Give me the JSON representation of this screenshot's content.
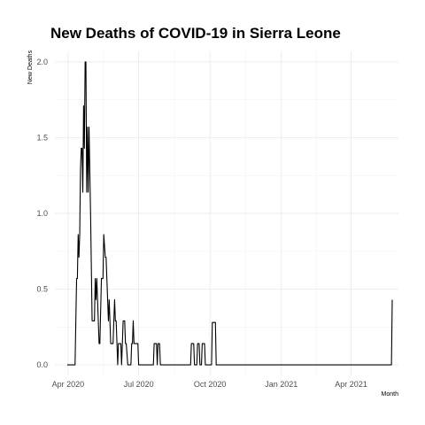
{
  "chart_data": {
    "type": "line",
    "title": "New Deaths of COVID-19 in Sierra Leone",
    "xlabel": "Month",
    "ylabel": "New Deaths",
    "xlim": [
      "2020-03-15",
      "2021-06-01"
    ],
    "ylim": [
      -0.07,
      2.07
    ],
    "x_ticks": [
      {
        "date": "2020-04-01",
        "label": "Apr 2020"
      },
      {
        "date": "2020-07-01",
        "label": "Jul 2020"
      },
      {
        "date": "2020-10-01",
        "label": "Oct 2020"
      },
      {
        "date": "2021-01-01",
        "label": "Jan 2021"
      },
      {
        "date": "2021-04-01",
        "label": "Apr 2021"
      }
    ],
    "y_ticks": [
      {
        "value": 0.0,
        "label": "0.0"
      },
      {
        "value": 0.5,
        "label": "0.5"
      },
      {
        "value": 1.0,
        "label": "1.0"
      },
      {
        "value": 1.5,
        "label": "1.5"
      },
      {
        "value": 2.0,
        "label": "2.0"
      }
    ],
    "grid": true,
    "series": [
      {
        "color": "#000000",
        "points": [
          [
            "2020-03-31",
            0
          ],
          [
            "2020-04-10",
            0
          ],
          [
            "2020-04-11",
            0.29
          ],
          [
            "2020-04-12",
            0.57
          ],
          [
            "2020-04-13",
            0.57
          ],
          [
            "2020-04-14",
            0.86
          ],
          [
            "2020-04-15",
            0.71
          ],
          [
            "2020-04-16",
            0.86
          ],
          [
            "2020-04-17",
            1.29
          ],
          [
            "2020-04-18",
            1.43
          ],
          [
            "2020-04-19",
            1.43
          ],
          [
            "2020-04-20",
            1.14
          ],
          [
            "2020-04-21",
            1.71
          ],
          [
            "2020-04-22",
            1.43
          ],
          [
            "2020-04-23",
            2.0
          ],
          [
            "2020-04-24",
            2.0
          ],
          [
            "2020-04-25",
            1.14
          ],
          [
            "2020-04-26",
            1.57
          ],
          [
            "2020-04-27",
            1.14
          ],
          [
            "2020-04-28",
            1.57
          ],
          [
            "2020-04-30",
            1.0
          ],
          [
            "2020-05-02",
            0.29
          ],
          [
            "2020-05-05",
            0.29
          ],
          [
            "2020-05-06",
            0.57
          ],
          [
            "2020-05-07",
            0.43
          ],
          [
            "2020-05-08",
            0.57
          ],
          [
            "2020-05-09",
            0.43
          ],
          [
            "2020-05-11",
            0.14
          ],
          [
            "2020-05-12",
            0.14
          ],
          [
            "2020-05-14",
            0.57
          ],
          [
            "2020-05-16",
            0.57
          ],
          [
            "2020-05-17",
            0.86
          ],
          [
            "2020-05-19",
            0.71
          ],
          [
            "2020-05-20",
            0.71
          ],
          [
            "2020-05-22",
            0.43
          ],
          [
            "2020-05-23",
            0.29
          ],
          [
            "2020-05-24",
            0.43
          ],
          [
            "2020-05-26",
            0.14
          ],
          [
            "2020-05-29",
            0.14
          ],
          [
            "2020-05-30",
            0.29
          ],
          [
            "2020-05-31",
            0.43
          ],
          [
            "2020-06-01",
            0.29
          ],
          [
            "2020-06-02",
            0.29
          ],
          [
            "2020-06-04",
            0.0
          ],
          [
            "2020-06-05",
            0.14
          ],
          [
            "2020-06-08",
            0.14
          ],
          [
            "2020-06-09",
            0.0
          ],
          [
            "2020-06-10",
            0.14
          ],
          [
            "2020-06-11",
            0.29
          ],
          [
            "2020-06-13",
            0.29
          ],
          [
            "2020-06-14",
            0.14
          ],
          [
            "2020-06-15",
            0.14
          ],
          [
            "2020-06-17",
            0.0
          ],
          [
            "2020-06-21",
            0.0
          ],
          [
            "2020-06-22",
            0.14
          ],
          [
            "2020-06-23",
            0.14
          ],
          [
            "2020-06-24",
            0.29
          ],
          [
            "2020-06-25",
            0.14
          ],
          [
            "2020-06-30",
            0.14
          ],
          [
            "2020-07-01",
            0.0
          ],
          [
            "2020-07-20",
            0.0
          ],
          [
            "2020-07-21",
            0.14
          ],
          [
            "2020-07-24",
            0.14
          ],
          [
            "2020-07-25",
            0.0
          ],
          [
            "2020-07-26",
            0.14
          ],
          [
            "2020-07-28",
            0.14
          ],
          [
            "2020-07-29",
            0.0
          ],
          [
            "2020-09-06",
            0.0
          ],
          [
            "2020-09-07",
            0.14
          ],
          [
            "2020-09-10",
            0.14
          ],
          [
            "2020-09-11",
            0.0
          ],
          [
            "2020-09-14",
            0.0
          ],
          [
            "2020-09-15",
            0.14
          ],
          [
            "2020-09-17",
            0.14
          ],
          [
            "2020-09-18",
            0.0
          ],
          [
            "2020-09-20",
            0.0
          ],
          [
            "2020-09-21",
            0.14
          ],
          [
            "2020-09-24",
            0.14
          ],
          [
            "2020-09-25",
            0.0
          ],
          [
            "2020-10-03",
            0.0
          ],
          [
            "2020-10-04",
            0.28
          ],
          [
            "2020-10-08",
            0.28
          ],
          [
            "2020-10-09",
            0.0
          ],
          [
            "2021-05-23",
            0.0
          ],
          [
            "2021-05-24",
            0.43
          ]
        ]
      }
    ]
  }
}
